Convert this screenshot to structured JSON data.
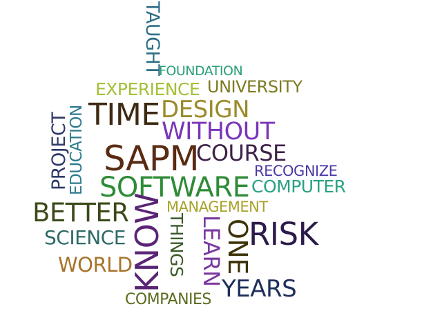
{
  "words": [
    {
      "text": "TAUGHT",
      "color": "#2f6f86"
    },
    {
      "text": "FOUNDATION",
      "color": "#2aa07a"
    },
    {
      "text": "EXPERIENCE",
      "color": "#a3c139"
    },
    {
      "text": "UNIVERSITY",
      "color": "#7d7a1f"
    },
    {
      "text": "PROJECT",
      "color": "#2f3a6a"
    },
    {
      "text": "EDUCATION",
      "color": "#2b7a8c"
    },
    {
      "text": "TIME",
      "color": "#3e2a12"
    },
    {
      "text": "DESIGN",
      "color": "#9a8b2a"
    },
    {
      "text": "WITHOUT",
      "color": "#7a35b8"
    },
    {
      "text": "SAPM",
      "color": "#5a2a12"
    },
    {
      "text": "COURSE",
      "color": "#3e2148"
    },
    {
      "text": "RECOGNIZE",
      "color": "#4a3aa6"
    },
    {
      "text": "SOFTWARE",
      "color": "#2e8b37"
    },
    {
      "text": "COMPUTER",
      "color": "#2ba084"
    },
    {
      "text": "BETTER",
      "color": "#3b4a1a"
    },
    {
      "text": "MANAGEMENT",
      "color": "#a7a12a"
    },
    {
      "text": "KNOW",
      "color": "#5a2474"
    },
    {
      "text": "THINGS",
      "color": "#3a5a26"
    },
    {
      "text": "LEARN",
      "color": "#7a3aa0"
    },
    {
      "text": "ONE",
      "color": "#3b3208"
    },
    {
      "text": "RISK",
      "color": "#2c1b4a"
    },
    {
      "text": "SCIENCE",
      "color": "#2d6a66"
    },
    {
      "text": "WORLD",
      "color": "#a8742a"
    },
    {
      "text": "YEARS",
      "color": "#1f2e5a"
    },
    {
      "text": "COMPANIES",
      "color": "#5a6b1f"
    }
  ]
}
